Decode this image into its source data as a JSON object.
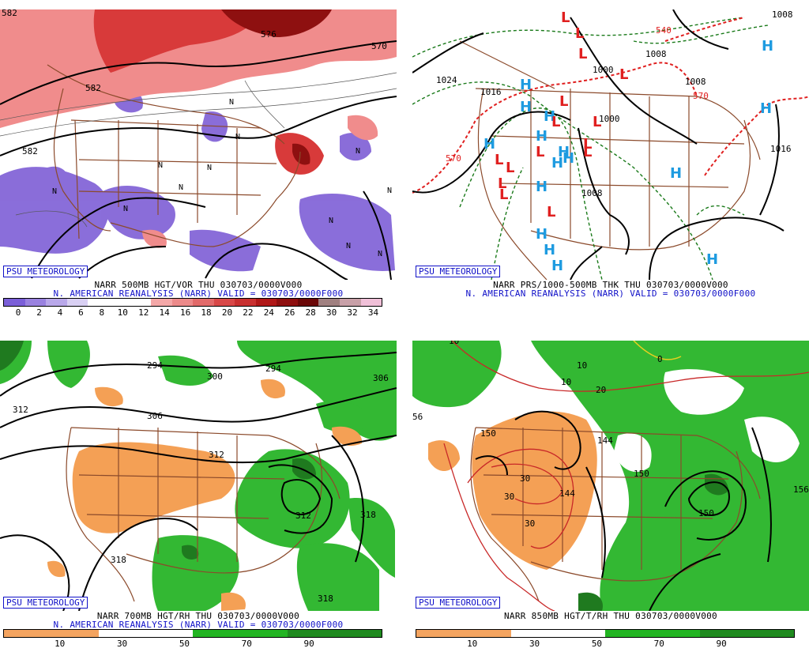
{
  "badge_text": "PSU METEOROLOGY",
  "panels": {
    "p1": {
      "caption_line1": "NARR 500MB HGT/VOR THU 030703/0000V000",
      "caption_line2": "N. AMERICAN REANALYSIS (NARR) VALID = 030703/0000F000",
      "colorbar_labels": [
        "0",
        "2",
        "4",
        "6",
        "8",
        "10",
        "12",
        "14",
        "16",
        "18",
        "20",
        "22",
        "24",
        "26",
        "28",
        "30",
        "32",
        "34"
      ],
      "colorbar_colors": [
        "#7b5fd8",
        "#9a82e0",
        "#b9a8ea",
        "#d9d0f3",
        "#ffffff",
        "#ffffff",
        "#ffffff",
        "#f4a8a8",
        "#ec8a8a",
        "#e26a6a",
        "#d84848",
        "#c83030",
        "#b01818",
        "#8e0f0f",
        "#6b0808",
        "#a08080",
        "#c8a0a8",
        "#f0c0d8"
      ],
      "contour_labels": [
        "582",
        "570",
        "582",
        "582",
        "5?6"
      ],
      "marks": [
        "N",
        "N",
        "N",
        "N",
        "N",
        "N",
        "N",
        "N",
        "N",
        "N",
        "N",
        "N"
      ]
    },
    "p2": {
      "caption_line1": "NARR PRS/1000-500MB THK THU 030703/0000V000",
      "caption_line2": "N. AMERICAN REANALYSIS (NARR) VALID = 030703/0000F000",
      "contour_labels": [
        "1024",
        "1016",
        "1000",
        "1008",
        "1008",
        "1000",
        "1016",
        "1008",
        "570",
        "570",
        "1008",
        "540"
      ],
      "highs": [
        "H",
        "H",
        "H",
        "H",
        "H",
        "H",
        "H",
        "H",
        "H",
        "H",
        "H",
        "H",
        "H",
        "H",
        "H",
        "H"
      ],
      "lows": [
        "L",
        "L",
        "L",
        "L",
        "L",
        "L",
        "L",
        "L",
        "L",
        "L",
        "L",
        "L",
        "L",
        "L",
        "L"
      ]
    },
    "p3": {
      "caption_line1": "NARR 700MB HGT/RH THU 030703/0000V000",
      "caption_line2": "N. AMERICAN REANALYSIS (NARR) VALID = 030703/0000F000",
      "colorbar_labels": [
        "10",
        "30",
        "50",
        "70",
        "90"
      ],
      "colorbar_colors": [
        "#f4a460",
        "#f4a460",
        "#ffffff",
        "#ffffff",
        "#22b422",
        "#22b422",
        "#1f8a1f",
        "#1f8a1f"
      ],
      "contour_labels": [
        "294",
        "300",
        "294",
        "306",
        "312",
        "306",
        "312",
        "312",
        "318",
        "318",
        "318"
      ]
    },
    "p4": {
      "caption_line1": "NARR 850MB HGT/T/RH THU 030703/0000V000",
      "colorbar_labels": [
        "10",
        "30",
        "50",
        "70",
        "90"
      ],
      "colorbar_colors": [
        "#f4a460",
        "#f4a460",
        "#ffffff",
        "#ffffff",
        "#22b422",
        "#22b422",
        "#1f8a1f",
        "#1f8a1f"
      ],
      "contour_labels": [
        "150",
        "144",
        "150",
        "144",
        "150",
        "156",
        "30",
        "30",
        "30",
        "20",
        "10",
        "10",
        "10",
        "0",
        "56"
      ]
    }
  }
}
